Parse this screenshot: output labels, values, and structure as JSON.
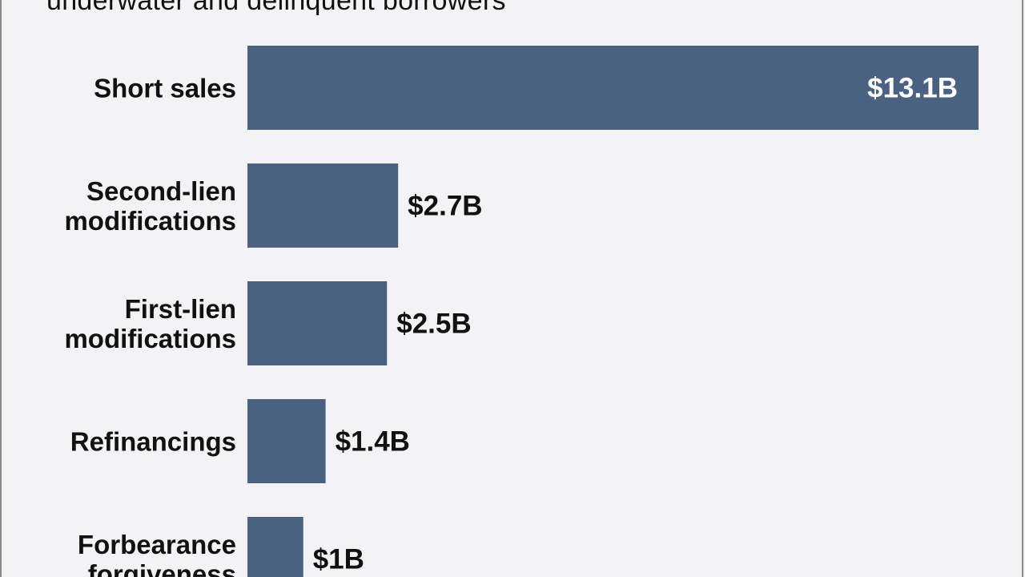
{
  "title": "underwater and delinquent borrowers",
  "colors": {
    "bar": "#4a6180",
    "label_inside": "#ffffff",
    "label_outside": "#111111"
  },
  "chart_data": {
    "type": "bar",
    "orientation": "horizontal",
    "categories": [
      "Short sales",
      "Second-lien modifications",
      "First-lien modifications",
      "Refinancings",
      "Forbearance forgiveness"
    ],
    "category_lines": [
      [
        "Short sales"
      ],
      [
        "Second-lien",
        "modifications"
      ],
      [
        "First-lien",
        "modifications"
      ],
      [
        "Refinancings"
      ],
      [
        "Forbearance",
        "forgiveness"
      ]
    ],
    "values": [
      13.1,
      2.7,
      2.5,
      1.4,
      1
    ],
    "value_labels": [
      "$13.1B",
      "$2.7B",
      "$2.5B",
      "$1.4B",
      "$1B"
    ],
    "xlim": [
      0,
      13.1
    ],
    "grid": false,
    "legend": "none"
  }
}
